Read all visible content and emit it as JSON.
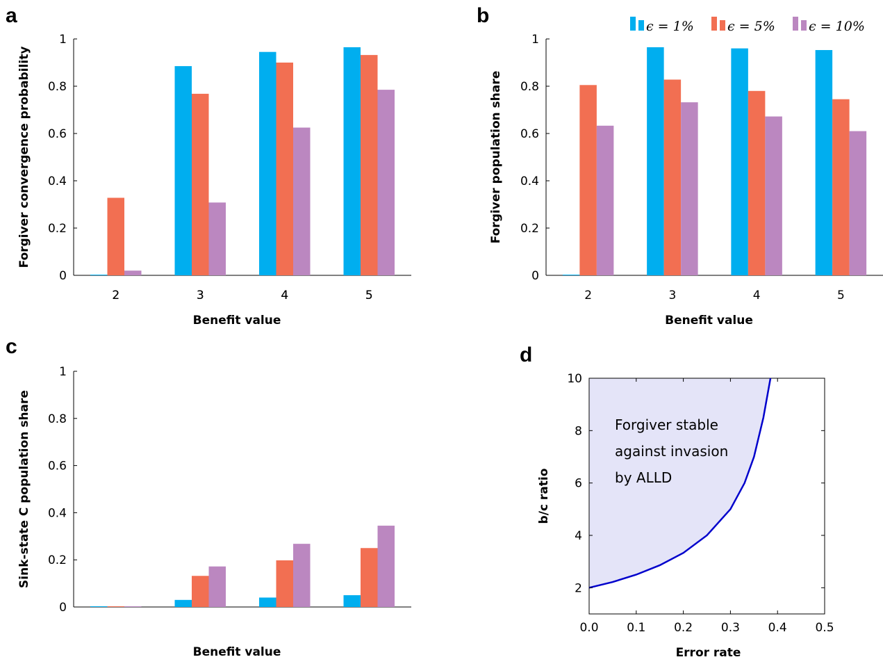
{
  "panels": {
    "a": "a",
    "b": "b",
    "c": "c",
    "d": "d"
  },
  "colors": {
    "blue": "#00aeef",
    "orange": "#f26f52",
    "purple": "#bb87c0",
    "curve": "#0000cc",
    "fill": "#e4e4f8"
  },
  "chart_data": [
    {
      "id": "a",
      "type": "bar",
      "xlabel": "Benefit value",
      "ylabel": "Forgiver convergence probability",
      "categories": [
        "2",
        "3",
        "4",
        "5"
      ],
      "ylim": [
        0,
        1
      ],
      "yticks": [
        "0",
        "0.2",
        "0.4",
        "0.6",
        "0.8",
        "1"
      ],
      "series": [
        {
          "values": [
            0.0,
            0.885,
            0.945,
            0.965
          ]
        },
        {
          "values": [
            0.328,
            0.768,
            0.9,
            0.932
          ]
        },
        {
          "values": [
            0.02,
            0.308,
            0.625,
            0.785
          ]
        }
      ]
    },
    {
      "id": "b",
      "type": "bar",
      "xlabel": "Benefit value",
      "ylabel": "Forgiver population share",
      "categories": [
        "2",
        "3",
        "4",
        "5"
      ],
      "ylim": [
        0,
        1
      ],
      "yticks": [
        "0",
        "0.2",
        "0.4",
        "0.6",
        "0.8",
        "1"
      ],
      "legend": [
        "ϵ = 1%",
        "ϵ = 5%",
        "ϵ = 10%"
      ],
      "legend_position": "top-right",
      "series": [
        {
          "name": "ϵ = 1%",
          "values": [
            0.0,
            0.965,
            0.96,
            0.953
          ]
        },
        {
          "name": "ϵ = 5%",
          "values": [
            0.805,
            0.828,
            0.78,
            0.745
          ]
        },
        {
          "name": "ϵ = 10%",
          "values": [
            0.633,
            0.732,
            0.672,
            0.61
          ]
        }
      ]
    },
    {
      "id": "c",
      "type": "bar",
      "xlabel": "Benefit value",
      "ylabel": "Sink-state C population share",
      "categories": [
        "2",
        "3",
        "4",
        "5"
      ],
      "ylim": [
        0,
        1
      ],
      "yticks": [
        "0",
        "0.2",
        "0.4",
        "0.6",
        "0.8",
        "1"
      ],
      "series": [
        {
          "values": [
            0.0,
            0.03,
            0.04,
            0.05
          ]
        },
        {
          "values": [
            0.0,
            0.132,
            0.198,
            0.25
          ]
        },
        {
          "values": [
            0.0,
            0.172,
            0.268,
            0.345
          ]
        }
      ]
    },
    {
      "id": "d",
      "type": "area",
      "xlabel": "Error rate",
      "ylabel": "b/c ratio",
      "xlim": [
        0,
        0.5
      ],
      "ylim": [
        1,
        10
      ],
      "xticks": [
        "0.0",
        "0.1",
        "0.2",
        "0.3",
        "0.4",
        "0.5"
      ],
      "yticks": [
        "2",
        "4",
        "6",
        "8",
        "10"
      ],
      "annotation": [
        "Forgiver stable",
        "against invasion",
        "by ALLD"
      ],
      "curve": {
        "x": [
          0,
          0.05,
          0.1,
          0.15,
          0.2,
          0.25,
          0.3,
          0.33,
          0.35,
          0.37,
          0.385
        ],
        "y": [
          2.0,
          2.22,
          2.5,
          2.86,
          3.33,
          4.0,
          5.0,
          6.0,
          7.0,
          8.5,
          10.0
        ]
      }
    }
  ]
}
